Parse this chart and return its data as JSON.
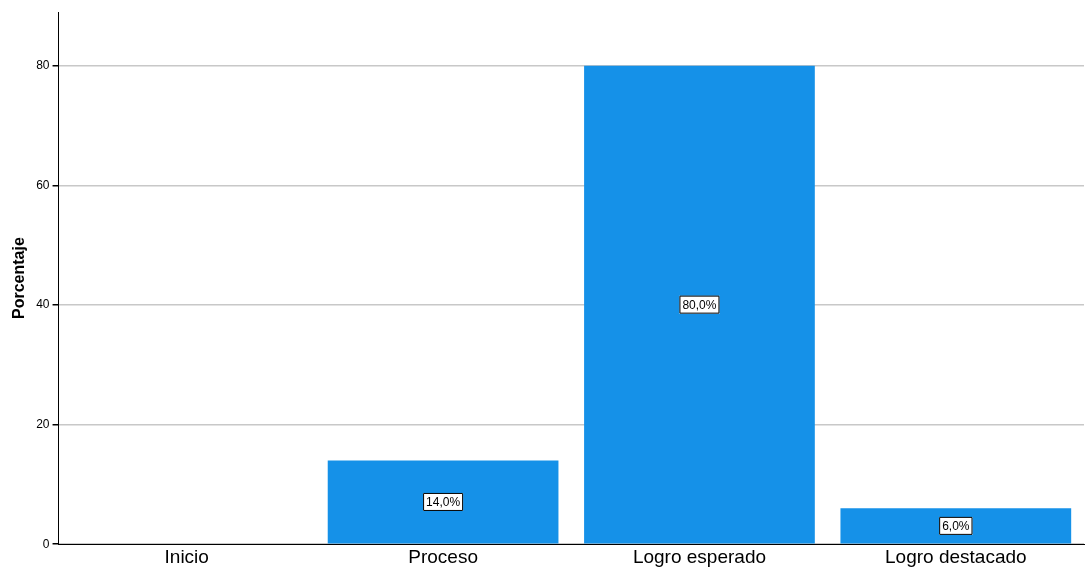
{
  "chart_data": {
    "type": "bar",
    "ylabel": "Porcentaje",
    "categories": [
      "Inicio",
      "Proceso",
      "Logro esperado",
      "Logro destacado"
    ],
    "values": [
      0,
      14,
      80,
      6
    ],
    "value_labels": [
      null,
      "14,0%",
      "80,0%",
      "6,0%"
    ],
    "color": "#1591e8",
    "ylim": [
      0,
      89
    ],
    "yticks": [
      0,
      20,
      40,
      60,
      80
    ],
    "grid": "y",
    "legend": false
  }
}
